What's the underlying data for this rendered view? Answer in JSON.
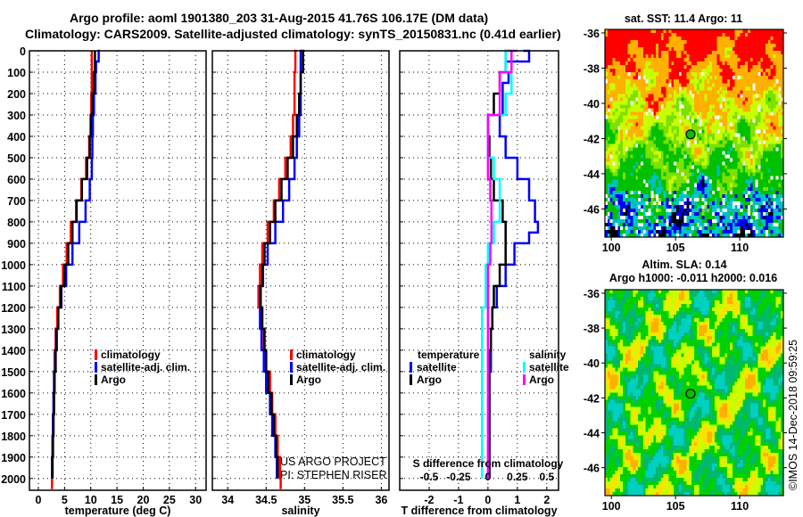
{
  "title_line1": "Argo profile: aoml 1901380_203 31-Aug-2015 41.76S 106.17E (DM data)",
  "title_line2": "Climatology: CARS2009. Satellite-adjusted climatology: synTS_20150831.nc (0.41d earlier)",
  "credit_line1": "US ARGO PROJECT",
  "credit_line2": "PI: STEPHEN RISER",
  "timestamp": "©IMOS 14-Dec-2018 09:59:25",
  "colors": {
    "climatology": "#ff0000",
    "satellite": "#0000ff",
    "argo": "#000000",
    "sal_satellite": "#00ffff",
    "sal_argo": "#ff00ff"
  },
  "chart_data": [
    {
      "type": "line",
      "id": "temperature",
      "xlabel": "temperature (deg C)",
      "ylabel": "",
      "xlim": [
        -1.7,
        32
      ],
      "ylim": [
        2055,
        0
      ],
      "xticks": [
        "0",
        "5",
        "10",
        "15",
        "20",
        "25",
        "30"
      ],
      "xtick_values": [
        0,
        5,
        10,
        15,
        20,
        25,
        30
      ],
      "yticks": [
        "0",
        "100",
        "200",
        "300",
        "400",
        "500",
        "600",
        "700",
        "800",
        "900",
        "1000",
        "1100",
        "1200",
        "1300",
        "1400",
        "1500",
        "1600",
        "1700",
        "1800",
        "1900",
        "2000"
      ],
      "grid": true,
      "legend": [
        "climatology",
        "satellite-adj. clim.",
        "Argo"
      ],
      "series": [
        {
          "name": "climatology",
          "color": "#ff0000",
          "depth": [
            0,
            100,
            200,
            300,
            400,
            500,
            600,
            700,
            800,
            900,
            1000,
            1100,
            1200,
            1300,
            1400,
            1500,
            1600,
            1700,
            1800,
            1900,
            2000,
            2050
          ],
          "values": [
            10.2,
            10.2,
            10.2,
            10.1,
            10.0,
            9.7,
            9.1,
            8.2,
            7.2,
            6.2,
            5.4,
            4.7,
            4.1,
            3.6,
            3.3,
            3.1,
            3.0,
            2.9,
            2.8,
            2.7,
            2.6,
            2.6
          ]
        },
        {
          "name": "satellite-adj. clim.",
          "color": "#0000ff",
          "depth": [
            0,
            50,
            100,
            200,
            300,
            400,
            500,
            600,
            700,
            800,
            900,
            1000,
            1100,
            1200,
            1300,
            1400,
            1500,
            1600,
            1700,
            1800,
            1900,
            2000
          ],
          "values": [
            11.3,
            11.5,
            11.0,
            10.9,
            10.6,
            10.4,
            10.3,
            10.2,
            9.8,
            9.0,
            7.8,
            6.5,
            5.3,
            4.4,
            3.8,
            3.4,
            3.2,
            3.0,
            2.9,
            2.8,
            2.7,
            2.6
          ]
        },
        {
          "name": "Argo",
          "color": "#000000",
          "depth": [
            0,
            100,
            200,
            300,
            400,
            500,
            600,
            700,
            800,
            900,
            1000,
            1100,
            1200,
            1300,
            1400,
            1500,
            1600,
            1700,
            1800,
            1900,
            2000
          ],
          "values": [
            10.8,
            10.8,
            10.6,
            10.3,
            10.0,
            9.8,
            9.3,
            8.3,
            7.3,
            6.5,
            5.7,
            5.0,
            4.3,
            3.8,
            3.5,
            3.3,
            3.1,
            3.0,
            2.9,
            2.8,
            2.7
          ]
        }
      ]
    },
    {
      "type": "line",
      "id": "salinity",
      "xlabel": "salinity",
      "xlim": [
        33.8,
        36.1
      ],
      "ylim": [
        2055,
        0
      ],
      "xticks": [
        "34",
        "34.5",
        "35",
        "35.5",
        "36"
      ],
      "xtick_values": [
        34,
        34.5,
        35,
        35.5,
        36
      ],
      "grid": true,
      "legend": [
        "climatology",
        "satellite-adj. clim.",
        "Argo"
      ],
      "series": [
        {
          "name": "climatology",
          "color": "#ff0000",
          "depth": [
            0,
            100,
            200,
            300,
            400,
            500,
            600,
            700,
            800,
            900,
            1000,
            1100,
            1200,
            1300,
            1400,
            1500,
            1600,
            1700,
            1800,
            1900,
            2000,
            2050
          ],
          "values": [
            34.9,
            34.88,
            34.87,
            34.87,
            34.85,
            34.82,
            34.75,
            34.67,
            34.6,
            34.52,
            34.45,
            34.42,
            34.4,
            34.43,
            34.47,
            34.5,
            34.55,
            34.58,
            34.62,
            34.65,
            34.68,
            34.69
          ]
        },
        {
          "name": "satellite-adj. clim.",
          "color": "#0000ff",
          "depth": [
            0,
            100,
            200,
            300,
            400,
            500,
            600,
            700,
            800,
            900,
            1000,
            1100,
            1200,
            1300,
            1400,
            1500,
            1600,
            1700,
            1800,
            1900,
            2000
          ],
          "values": [
            34.97,
            34.95,
            34.95,
            34.95,
            34.93,
            34.9,
            34.87,
            34.8,
            34.72,
            34.62,
            34.52,
            34.46,
            34.42,
            34.42,
            34.44,
            34.47,
            34.5,
            34.55,
            34.58,
            34.62,
            34.64
          ]
        },
        {
          "name": "Argo",
          "color": "#000000",
          "depth": [
            0,
            100,
            200,
            300,
            400,
            500,
            600,
            700,
            800,
            900,
            1000,
            1100,
            1200,
            1300,
            1400,
            1500,
            1600,
            1700,
            1800,
            1900,
            2000
          ],
          "values": [
            35.0,
            34.98,
            34.95,
            34.93,
            34.9,
            34.85,
            34.78,
            34.7,
            34.62,
            34.55,
            34.48,
            34.45,
            34.43,
            34.45,
            34.48,
            34.5,
            34.53,
            34.57,
            34.6,
            34.63,
            34.65
          ]
        }
      ]
    },
    {
      "type": "line",
      "id": "difference",
      "xlabel": "T difference from climatology",
      "x2label": "S difference from climatology",
      "xlim": [
        -3.0,
        2.4
      ],
      "x2lim": [
        -0.75,
        0.6
      ],
      "ylim": [
        2055,
        0
      ],
      "xticks": [
        "-2",
        "-1",
        "0",
        "1",
        "2"
      ],
      "xtick_values": [
        -2,
        -1,
        0,
        1,
        2
      ],
      "x2ticks": [
        "-0.5",
        "-0.25",
        "0",
        "0.25",
        "0.5"
      ],
      "x2tick_values": [
        -0.5,
        -0.25,
        0,
        0.25,
        0.5
      ],
      "grid": true,
      "legend_temperature_title": "temperature",
      "legend_salinity_title": "salinity",
      "legend_temperature": [
        "satellite",
        "Argo"
      ],
      "legend_salinity": [
        "satellite",
        "Argo"
      ],
      "series": [
        {
          "name": "T satellite",
          "axis": "T",
          "color": "#0000ff",
          "depth": [
            0,
            50,
            100,
            150,
            200,
            300,
            400,
            500,
            600,
            700,
            800,
            850,
            900,
            1000,
            1100,
            1200,
            1300,
            1400,
            1500,
            2000
          ],
          "values": [
            1.2,
            1.4,
            0.6,
            0.7,
            0.5,
            0.5,
            0.4,
            0.6,
            1.0,
            1.4,
            1.6,
            1.7,
            1.4,
            0.9,
            0.6,
            0.3,
            0.15,
            0.1,
            0.1,
            0.05
          ]
        },
        {
          "name": "T Argo",
          "axis": "T",
          "color": "#000000",
          "depth": [
            0,
            100,
            200,
            300,
            400,
            500,
            600,
            700,
            800,
            900,
            1000,
            1100,
            1200,
            1300,
            1400,
            2000
          ],
          "values": [
            0.8,
            0.6,
            0.4,
            0.2,
            0.0,
            0.05,
            0.1,
            0.2,
            0.5,
            0.6,
            0.6,
            0.4,
            0.2,
            0.15,
            0.1,
            0.05
          ]
        },
        {
          "name": "S satellite",
          "axis": "S",
          "color": "#00ffff",
          "depth": [
            0,
            100,
            200,
            300,
            400,
            500,
            600,
            700,
            800,
            900,
            1000,
            1200,
            1500,
            2000
          ],
          "values": [
            0.2,
            0.15,
            0.2,
            0.15,
            0.0,
            0.0,
            0.05,
            0.1,
            0.1,
            0.05,
            0.0,
            -0.02,
            -0.05,
            -0.05
          ]
        },
        {
          "name": "S Argo",
          "axis": "S",
          "color": "#ff00ff",
          "depth": [
            0,
            100,
            200,
            300,
            400,
            500,
            600,
            700,
            800,
            900,
            1000,
            1500,
            2000
          ],
          "values": [
            0.25,
            0.2,
            0.1,
            0.1,
            0.0,
            0.0,
            0.0,
            0.02,
            0.03,
            0.03,
            0.02,
            0.0,
            0.0
          ]
        }
      ]
    },
    {
      "type": "heatmap",
      "id": "sst_map",
      "title": "sat. SST: 11.4 Argo: 11",
      "xlim": [
        99.5,
        113.4
      ],
      "ylim": [
        -47.6,
        -35.8
      ],
      "xticks": [
        "100",
        "105",
        "110"
      ],
      "xtick_values": [
        100,
        105,
        110
      ],
      "yticks": [
        "-36",
        "-38",
        "-40",
        "-42",
        "-44",
        "-46"
      ],
      "ytick_values": [
        -36,
        -38,
        -40,
        -42,
        -44,
        -46
      ],
      "marker": {
        "lon": 106.17,
        "lat": -41.76
      }
    },
    {
      "type": "heatmap",
      "id": "sla_map",
      "title_line1": "Altim. SLA: 0.14",
      "title_line2": "Argo h1000: -0.011 h2000: 0.016",
      "xlim": [
        99.5,
        113.4
      ],
      "ylim": [
        -47.6,
        -35.8
      ],
      "xticks": [
        "100",
        "105",
        "110"
      ],
      "xtick_values": [
        100,
        105,
        110
      ],
      "yticks": [
        "-36",
        "-38",
        "-40",
        "-42",
        "-44",
        "-46"
      ],
      "ytick_values": [
        -36,
        -38,
        -40,
        -42,
        -44,
        -46
      ],
      "marker": {
        "lon": 106.17,
        "lat": -41.76
      }
    }
  ]
}
